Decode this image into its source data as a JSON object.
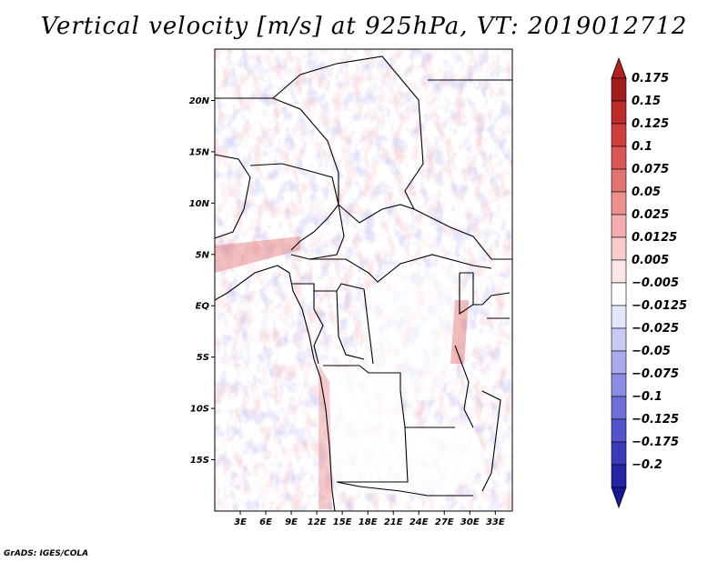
{
  "title": "Vertical velocity [m/s] at 925hPa, VT: 2019012712",
  "credit": "GrADS: IGES/COLA",
  "map": {
    "lon_range": [
      0,
      35
    ],
    "lat_range": [
      -20,
      25
    ],
    "lon_ticks": [
      {
        "value": 3,
        "label": "3E"
      },
      {
        "value": 6,
        "label": "6E"
      },
      {
        "value": 9,
        "label": "9E"
      },
      {
        "value": 12,
        "label": "12E"
      },
      {
        "value": 15,
        "label": "15E"
      },
      {
        "value": 18,
        "label": "18E"
      },
      {
        "value": 21,
        "label": "21E"
      },
      {
        "value": 24,
        "label": "24E"
      },
      {
        "value": 27,
        "label": "27E"
      },
      {
        "value": 30,
        "label": "30E"
      },
      {
        "value": 33,
        "label": "33E"
      }
    ],
    "lat_ticks": [
      {
        "value": 20,
        "label": "20N"
      },
      {
        "value": 15,
        "label": "15N"
      },
      {
        "value": 10,
        "label": "10N"
      },
      {
        "value": 5,
        "label": "5N"
      },
      {
        "value": 0,
        "label": "EQ"
      },
      {
        "value": -5,
        "label": "5S"
      },
      {
        "value": -10,
        "label": "10S"
      },
      {
        "value": -15,
        "label": "15S"
      }
    ]
  },
  "colorbar": {
    "levels": [
      {
        "label": "0.175",
        "color": "#a41c1c"
      },
      {
        "label": "0.15",
        "color": "#bf2a2a"
      },
      {
        "label": "0.125",
        "color": "#d13e3e"
      },
      {
        "label": "0.1",
        "color": "#dc5858"
      },
      {
        "label": "0.075",
        "color": "#e57373"
      },
      {
        "label": "0.05",
        "color": "#ee9090"
      },
      {
        "label": "0.025",
        "color": "#f4adad"
      },
      {
        "label": "0.0125",
        "color": "#f9cccc"
      },
      {
        "label": "0.005",
        "color": "#fde6e6"
      },
      {
        "label": "−0.005",
        "color": "#ffffff"
      },
      {
        "label": "−0.0125",
        "color": "#e6e6fb"
      },
      {
        "label": "−0.025",
        "color": "#c9c9f4"
      },
      {
        "label": "−0.05",
        "color": "#aaaaee"
      },
      {
        "label": "−0.075",
        "color": "#8c8ce4"
      },
      {
        "label": "−0.1",
        "color": "#6f6fd9"
      },
      {
        "label": "−0.125",
        "color": "#5353cc"
      },
      {
        "label": "−0.175",
        "color": "#3a3abb"
      },
      {
        "label": "−0.2",
        "color": "#2424a6"
      }
    ],
    "end_colors": {
      "top": "#b22222",
      "bottom": "#1a1a99"
    }
  }
}
